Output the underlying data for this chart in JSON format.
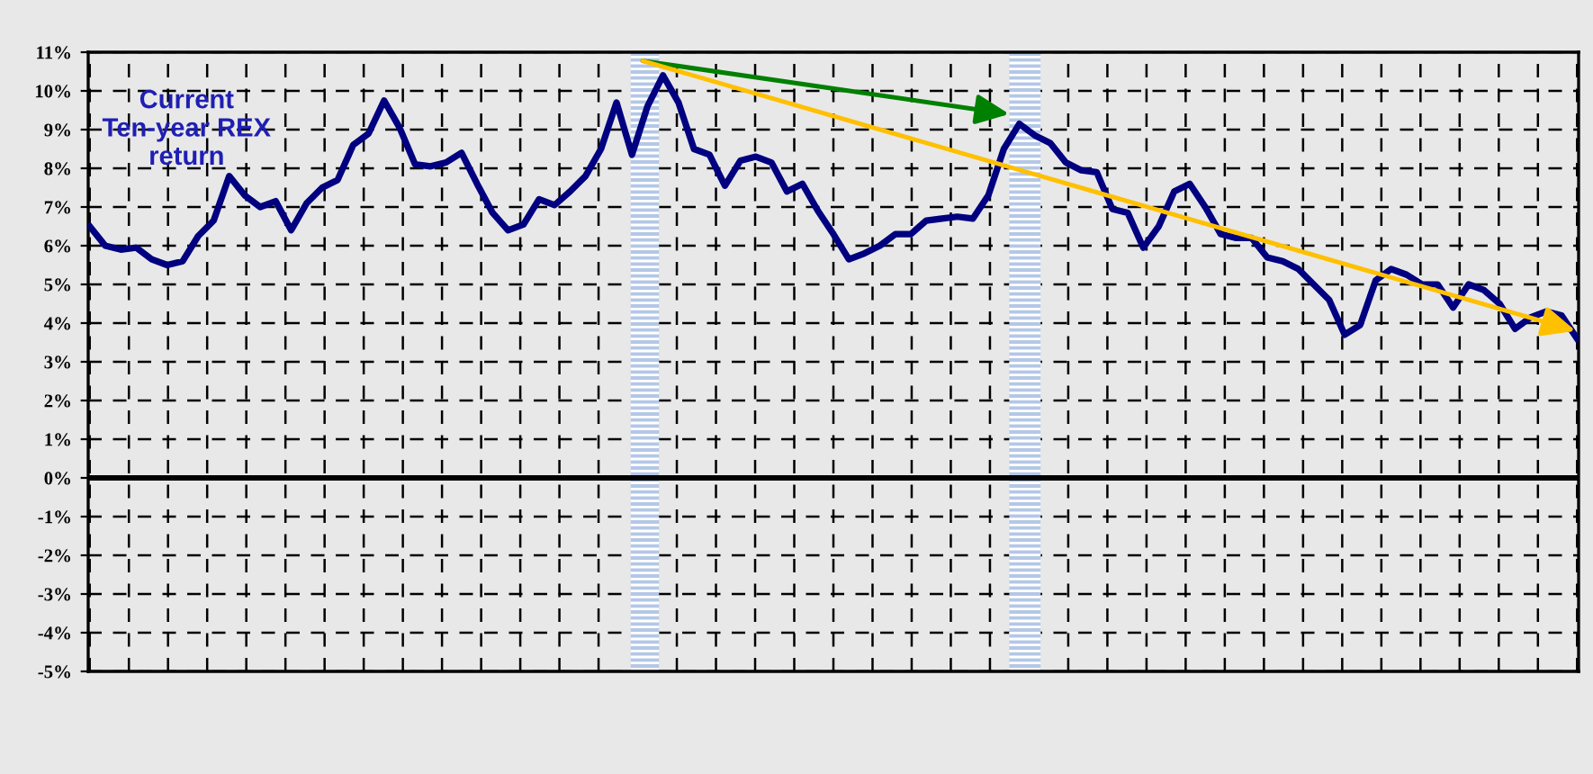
{
  "chart_data": {
    "type": "line",
    "annotations": [
      "Current Ten-year REX return"
    ],
    "categories": [
      null,
      null,
      null,
      null,
      null,
      null,
      null,
      null,
      null,
      null,
      null,
      null,
      null,
      null,
      null,
      null,
      null,
      null,
      null,
      null,
      null,
      null,
      null,
      null,
      null,
      null,
      null,
      null,
      null,
      null,
      null,
      null,
      null,
      null,
      null,
      null,
      null,
      null,
      null,
      null,
      null,
      null,
      null,
      null,
      null,
      null,
      null,
      null,
      null,
      null,
      null,
      null,
      null,
      null,
      null,
      null,
      null,
      null,
      null,
      null,
      null,
      null,
      null,
      null,
      null,
      null,
      null,
      null,
      null,
      null,
      null,
      null,
      null,
      null,
      null,
      null,
      null,
      null,
      null,
      null,
      null,
      null,
      null,
      null,
      null,
      null,
      null,
      null,
      null,
      null,
      null,
      null,
      null,
      null,
      null,
      null,
      null
    ],
    "ylim": [
      -5,
      11
    ],
    "yticks": [
      {
        "value": -5,
        "label": "-5%"
      },
      {
        "value": -4,
        "label": "-4%"
      },
      {
        "value": -3,
        "label": "-3%"
      },
      {
        "value": -2,
        "label": "-2%"
      },
      {
        "value": -1,
        "label": "-1%"
      },
      {
        "value": 0,
        "label": "0%"
      },
      {
        "value": 1,
        "label": "1%"
      },
      {
        "value": 2,
        "label": "2%"
      },
      {
        "value": 3,
        "label": "3%"
      },
      {
        "value": 4,
        "label": "4%"
      },
      {
        "value": 5,
        "label": "5%"
      },
      {
        "value": 6,
        "label": "6%"
      },
      {
        "value": 7,
        "label": "7%"
      },
      {
        "value": 8,
        "label": "8%"
      },
      {
        "value": 9,
        "label": "9%"
      },
      {
        "value": 10,
        "label": "10%"
      },
      {
        "value": 11,
        "label": "11%"
      }
    ],
    "grid": true,
    "line_style": "solid",
    "ref_lines": [
      {
        "axis": "y",
        "value": 0,
        "color": "#000000"
      }
    ],
    "series": [
      {
        "color": "#000080",
        "values": [
          6.5,
          6.0,
          5.9,
          5.95,
          5.65,
          5.5,
          5.6,
          6.25,
          6.65,
          7.8,
          7.3,
          7.0,
          7.15,
          6.4,
          7.1,
          7.5,
          7.7,
          8.6,
          8.9,
          9.75,
          9.05,
          8.1,
          8.05,
          8.15,
          8.4,
          7.6,
          6.85,
          6.4,
          6.55,
          7.2,
          7.05,
          7.4,
          7.8,
          8.5,
          9.7,
          8.35,
          9.6,
          10.4,
          9.7,
          8.5,
          8.35,
          7.55,
          8.2,
          8.3,
          8.15,
          7.4,
          7.6,
          6.9,
          6.3,
          5.65,
          5.8,
          6.0,
          6.3,
          6.3,
          6.65,
          6.7,
          6.75,
          6.7,
          7.3,
          8.5,
          9.15,
          8.85,
          8.65,
          8.15,
          7.95,
          7.9,
          6.95,
          6.85,
          5.95,
          6.5,
          7.4,
          7.6,
          7.0,
          6.3,
          6.2,
          6.2,
          5.7,
          5.6,
          5.4,
          5.0,
          4.6,
          3.7,
          3.95,
          5.1,
          5.4,
          5.25,
          5.0,
          5.0,
          4.4,
          5.0,
          4.85,
          4.5,
          3.85,
          4.15,
          4.3,
          4.2,
          3.6
        ]
      }
    ]
  }
}
